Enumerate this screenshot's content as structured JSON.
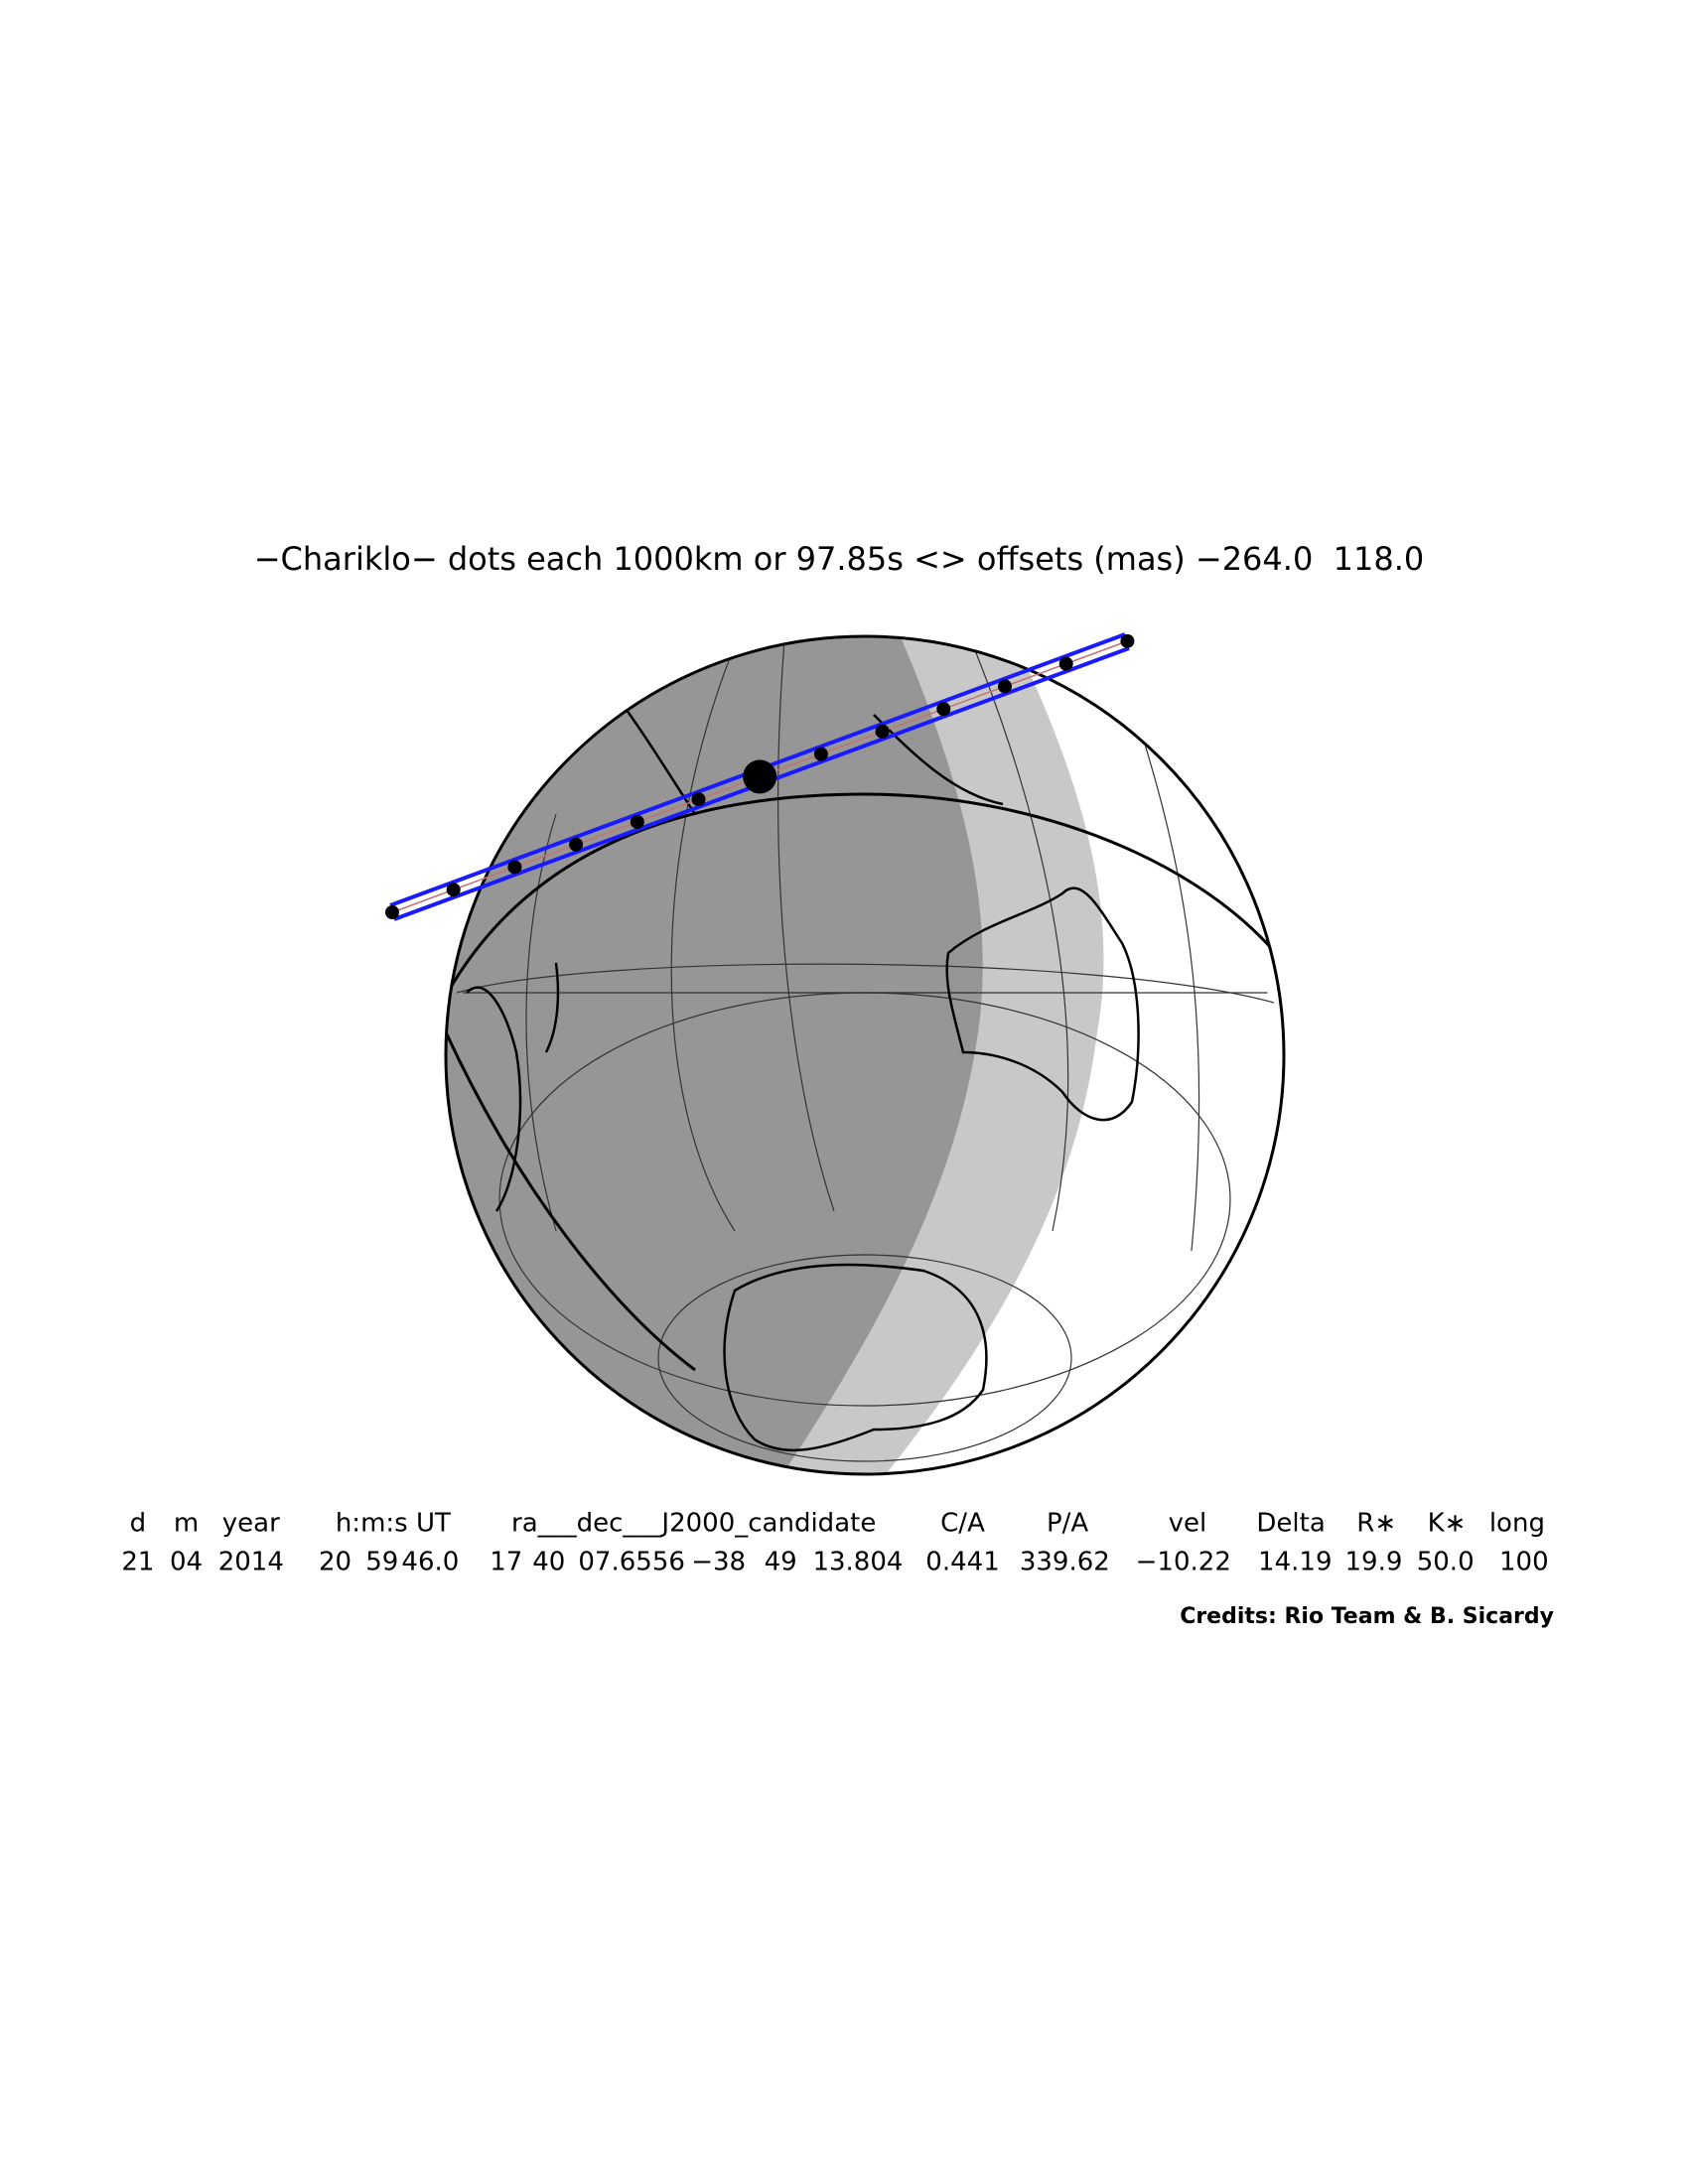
{
  "title": "−Chariklo− dots each 1000km or 97.85s <> offsets (mas) −264.0  118.0",
  "table": {
    "header": [
      "d",
      "m",
      "year",
      "h:m:s UT",
      "ra___dec___J2000_candidate",
      "C/A",
      "P/A",
      "vel",
      "Delta",
      "R∗",
      "K∗",
      "long"
    ],
    "rows": [
      [
        "21",
        "04",
        "2014",
        "20",
        "59",
        "46.0",
        "17",
        "40",
        "07.6556",
        "−38",
        "49",
        "13.804",
        "0.441",
        "339.62",
        "−10.22",
        "14.19",
        "19.9",
        "50.0",
        "100"
      ]
    ]
  },
  "credits": "Credits: Rio Team & B. Sicardy"
}
